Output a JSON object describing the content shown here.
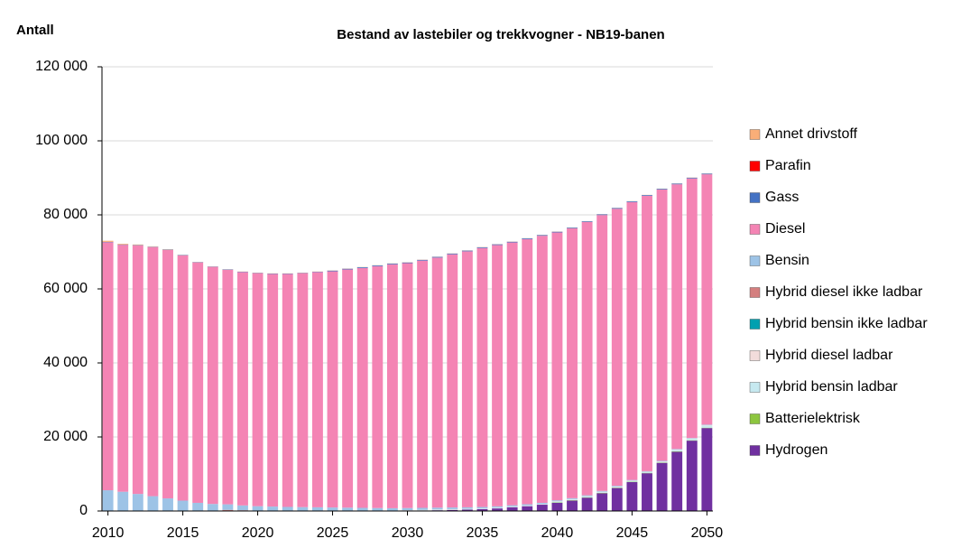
{
  "chart_data": {
    "type": "stacked_bar",
    "title": "Bestand av  lastebiler og trekkvogner - NB19-banen",
    "y_label": "Antall",
    "x": [
      2010,
      2011,
      2012,
      2013,
      2014,
      2015,
      2016,
      2017,
      2018,
      2019,
      2020,
      2021,
      2022,
      2023,
      2024,
      2025,
      2026,
      2027,
      2028,
      2029,
      2030,
      2031,
      2032,
      2033,
      2034,
      2035,
      2036,
      2037,
      2038,
      2039,
      2040,
      2041,
      2042,
      2043,
      2044,
      2045,
      2046,
      2047,
      2048,
      2049,
      2050
    ],
    "xlim": [
      2009.6,
      2050.4
    ],
    "xticks": [
      2010,
      2015,
      2020,
      2025,
      2030,
      2035,
      2040,
      2045,
      2050
    ],
    "ylim": [
      0,
      120000
    ],
    "yticks": [
      0,
      {
        "value": 20000,
        "label": "20 000"
      },
      {
        "value": 40000,
        "label": "40 000"
      },
      {
        "value": 60000,
        "label": "60 000"
      },
      {
        "value": 80000,
        "label": "80 000"
      },
      {
        "value": 100000,
        "label": "100 000"
      },
      {
        "value": 120000,
        "label": "120 000"
      }
    ],
    "grid": true,
    "legend": "right",
    "series": [
      {
        "name": "Hydrogen",
        "color": "#7030a0",
        "values": [
          0,
          0,
          0,
          0,
          0,
          0,
          0,
          0,
          0,
          0,
          0,
          0,
          0,
          0,
          0,
          0,
          0,
          0,
          0,
          0,
          0,
          100,
          200,
          300,
          400,
          500,
          700,
          1000,
          1300,
          1700,
          2200,
          2800,
          3600,
          4800,
          6200,
          7800,
          10200,
          13000,
          16000,
          19000,
          22400
        ]
      },
      {
        "name": "Batterielektrisk",
        "color": "#8dc63f",
        "values": [
          0,
          0,
          0,
          0,
          0,
          0,
          0,
          0,
          0,
          0,
          0,
          0,
          0,
          0,
          0,
          0,
          0,
          0,
          0,
          0,
          0,
          0,
          0,
          0,
          0,
          0,
          0,
          0,
          0,
          0,
          100,
          100,
          100,
          100,
          100,
          100,
          100,
          100,
          100,
          100,
          100
        ]
      },
      {
        "name": "Hybrid bensin ladbar",
        "color": "#c6e9f0",
        "values": [
          0,
          0,
          0,
          0,
          0,
          0,
          0,
          0,
          0,
          0,
          0,
          0,
          0,
          0,
          0,
          0,
          0,
          0,
          0,
          0,
          100,
          100,
          100,
          100,
          100,
          100,
          100,
          100,
          100,
          100,
          200,
          200,
          200,
          200,
          200,
          200,
          200,
          200,
          400,
          400,
          600
        ]
      },
      {
        "name": "Hybrid diesel ladbar",
        "color": "#f2dcdb",
        "values": [
          0,
          0,
          0,
          0,
          0,
          0,
          0,
          0,
          0,
          0,
          100,
          100,
          100,
          100,
          100,
          100,
          100,
          100,
          100,
          100,
          100,
          100,
          100,
          100,
          100,
          100,
          100,
          100,
          100,
          100,
          100,
          100,
          100,
          100,
          100,
          100,
          100,
          100,
          100,
          100,
          100
        ]
      },
      {
        "name": "Hybrid bensin ikke ladbar",
        "color": "#00a0b0",
        "values": [
          0,
          0,
          0,
          0,
          0,
          0,
          0,
          0,
          0,
          0,
          0,
          0,
          0,
          0,
          0,
          0,
          0,
          0,
          0,
          0,
          0,
          0,
          0,
          0,
          0,
          0,
          0,
          0,
          0,
          0,
          0,
          0,
          0,
          0,
          0,
          0,
          0,
          0,
          0,
          0,
          0
        ]
      },
      {
        "name": "Hybrid diesel ikke ladbar",
        "color": "#d47f7f",
        "values": [
          0,
          0,
          0,
          0,
          0,
          0,
          0,
          100,
          300,
          200,
          0,
          0,
          0,
          0,
          0,
          0,
          0,
          0,
          0,
          0,
          0,
          0,
          0,
          0,
          0,
          0,
          0,
          0,
          0,
          0,
          0,
          0,
          0,
          0,
          0,
          0,
          0,
          0,
          0,
          0,
          0
        ]
      },
      {
        "name": "Bensin",
        "color": "#9dc3e6",
        "values": [
          5600,
          5200,
          4600,
          4000,
          3400,
          2800,
          2200,
          1800,
          1500,
          1300,
          1200,
          1100,
          1000,
          950,
          900,
          850,
          800,
          750,
          700,
          650,
          600,
          550,
          500,
          450,
          400,
          380,
          360,
          340,
          320,
          300,
          280,
          260,
          240,
          220,
          200,
          180,
          160,
          150,
          140,
          130,
          120
        ]
      },
      {
        "name": "Diesel",
        "color": "#f484b4",
        "values": [
          67000,
          66700,
          67150,
          67300,
          67100,
          66250,
          64950,
          64050,
          63350,
          63050,
          62950,
          62850,
          62950,
          63200,
          63550,
          63800,
          64350,
          64800,
          65350,
          65900,
          66150,
          66800,
          67550,
          68400,
          69150,
          69970,
          70590,
          71010,
          71630,
          72150,
          72370,
          72890,
          73810,
          74530,
          74850,
          75070,
          74390,
          73300,
          71510,
          70120,
          67630
        ]
      },
      {
        "name": "Gass",
        "color": "#4472c4",
        "values": [
          100,
          100,
          100,
          100,
          100,
          100,
          100,
          100,
          100,
          100,
          100,
          100,
          100,
          100,
          100,
          200,
          200,
          200,
          200,
          200,
          200,
          200,
          200,
          200,
          200,
          200,
          200,
          200,
          200,
          200,
          200,
          200,
          200,
          200,
          200,
          200,
          200,
          200,
          200,
          200,
          200
        ]
      },
      {
        "name": "Parafin",
        "color": "#ff0000",
        "values": [
          0,
          0,
          0,
          0,
          0,
          0,
          0,
          0,
          0,
          0,
          0,
          0,
          0,
          0,
          0,
          0,
          0,
          0,
          0,
          0,
          0,
          0,
          0,
          0,
          0,
          0,
          0,
          0,
          0,
          0,
          0,
          0,
          0,
          0,
          0,
          0,
          0,
          0,
          0,
          0,
          0
        ]
      },
      {
        "name": "Annet drivstoff",
        "color": "#f9ae78",
        "values": [
          300,
          200,
          150,
          100,
          100,
          50,
          50,
          50,
          50,
          50,
          50,
          50,
          50,
          50,
          50,
          50,
          50,
          50,
          50,
          50,
          50,
          50,
          50,
          50,
          50,
          50,
          50,
          50,
          50,
          50,
          50,
          50,
          50,
          50,
          50,
          50,
          50,
          50,
          50,
          50,
          50
        ]
      }
    ]
  }
}
